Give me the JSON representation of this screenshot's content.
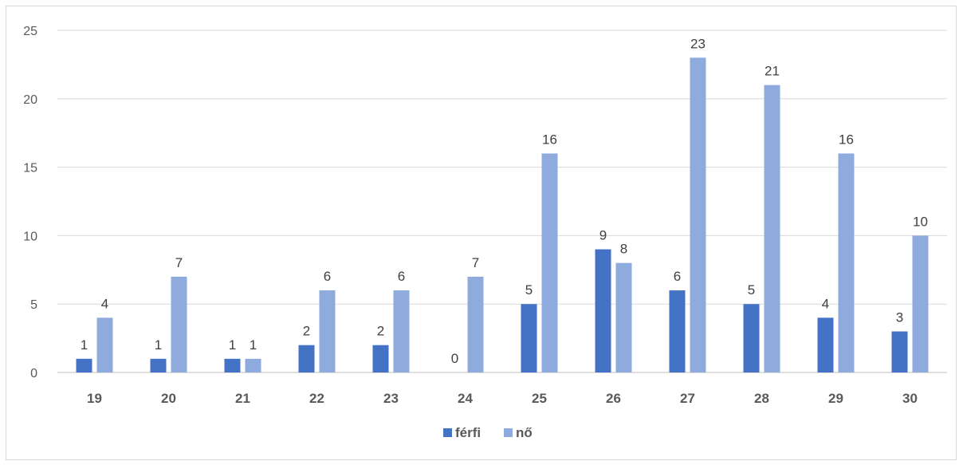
{
  "chart_data": {
    "type": "bar",
    "categories": [
      "19",
      "20",
      "21",
      "22",
      "23",
      "24",
      "25",
      "26",
      "27",
      "28",
      "29",
      "30"
    ],
    "series": [
      {
        "name": "férfi",
        "color": "#4472c4",
        "values": [
          1,
          1,
          1,
          2,
          2,
          0,
          5,
          9,
          6,
          5,
          4,
          3
        ]
      },
      {
        "name": "nő",
        "color": "#8faadc",
        "values": [
          4,
          7,
          1,
          6,
          6,
          7,
          16,
          8,
          23,
          21,
          16,
          10
        ]
      }
    ],
    "ylim": [
      0,
      25
    ],
    "yticks": [
      0,
      5,
      10,
      15,
      20,
      25
    ],
    "grid": true,
    "legend_position": "bottom",
    "title": "",
    "xlabel": "",
    "ylabel": ""
  }
}
